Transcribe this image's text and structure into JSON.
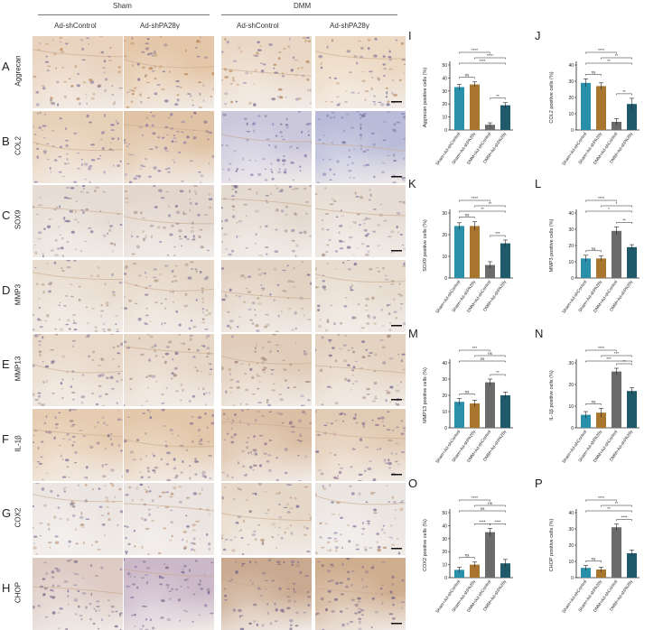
{
  "header": {
    "group_left": "Sham",
    "group_right": "DMM",
    "columns": [
      "Ad-shControl",
      "Ad-shPA28γ",
      "Ad-shControl",
      "Ad-shPA28γ"
    ]
  },
  "rows": [
    {
      "letter": "A",
      "label": "Aggrecan",
      "colors": [
        "#e9d3bf",
        "#e4c7a8",
        "#ead8c6",
        "#ecd9c3"
      ],
      "accent": "#b07a4a",
      "scale_bar": true
    },
    {
      "letter": "B",
      "label": "COL2",
      "colors": [
        "#e7d0b8",
        "#e0c3a5",
        "#ccc8dc",
        "#b9bbd8"
      ],
      "accent": "#7a6aa8",
      "scale_bar": true
    },
    {
      "letter": "C",
      "label": "SOX9",
      "colors": [
        "#e6dcd3",
        "#e3d6cc",
        "#e4d9cf",
        "#e7ddd4"
      ],
      "accent": "#a38a80",
      "scale_bar": true
    },
    {
      "letter": "D",
      "label": "MMP3",
      "colors": [
        "#e9ddd0",
        "#e6d8c9",
        "#e2d2c2",
        "#e7dccf"
      ],
      "accent": "#a88f7a",
      "scale_bar": true
    },
    {
      "letter": "E",
      "label": "MMP13",
      "colors": [
        "#e8d9c9",
        "#e6d6c6",
        "#e0ccb8",
        "#e4d3c1"
      ],
      "accent": "#9e8070",
      "scale_bar": true
    },
    {
      "letter": "F",
      "label": "IL-1β",
      "colors": [
        "#e6cdb2",
        "#e3c8ab",
        "#dcc0a6",
        "#e2cbb4"
      ],
      "accent": "#8a6a8a",
      "scale_bar": true
    },
    {
      "letter": "G",
      "label": "COX2",
      "colors": [
        "#ece6e2",
        "#eae3df",
        "#e6d8c8",
        "#ebe5e1"
      ],
      "accent": "#b58a6a",
      "scale_bar": true
    },
    {
      "letter": "H",
      "label": "CHOP",
      "colors": [
        "#ddcbc4",
        "#cbb8c8",
        "#c9a98f",
        "#cfae90"
      ],
      "accent": "#6d5a7e",
      "scale_bar": true
    }
  ],
  "x_categories": [
    "Sham+Ad-shControl",
    "Sham+Ad-shPA28γ",
    "DMM+Ad-shControl",
    "DMM+Ad-shPA28γ"
  ],
  "bar_colors": [
    "#2a8fa8",
    "#a8762e",
    "#6b6b6b",
    "#1f5a6a"
  ],
  "chart_data": [
    {
      "type": "bar",
      "panel": "I",
      "ylabel": "Aggrecan positive cells (%)",
      "ylim": [
        0,
        50
      ],
      "yticks": [
        0,
        10,
        20,
        30,
        40,
        50
      ],
      "values": [
        33,
        35,
        4,
        19
      ],
      "errors": [
        2,
        2,
        1.5,
        2
      ],
      "brackets": [
        {
          "from": 0,
          "to": 3,
          "label": "****"
        },
        {
          "from": 1,
          "to": 3,
          "label": "****"
        },
        {
          "from": 0,
          "to": 2,
          "label": "****"
        },
        {
          "from": 0,
          "to": 1,
          "label": "ns"
        },
        {
          "from": 2,
          "to": 3,
          "label": "**"
        }
      ]
    },
    {
      "type": "bar",
      "panel": "J",
      "ylabel": "COL2 positive cells (%)",
      "ylim": [
        0,
        40
      ],
      "yticks": [
        0,
        10,
        20,
        30,
        40
      ],
      "values": [
        29,
        27,
        5,
        16
      ],
      "errors": [
        2.5,
        2,
        2,
        3.5
      ],
      "brackets": [
        {
          "from": 0,
          "to": 3,
          "label": "**"
        },
        {
          "from": 1,
          "to": 3,
          "label": "**"
        },
        {
          "from": 0,
          "to": 2,
          "label": "****"
        },
        {
          "from": 0,
          "to": 1,
          "label": "ns"
        },
        {
          "from": 2,
          "to": 3,
          "label": "**"
        }
      ]
    },
    {
      "type": "bar",
      "panel": "K",
      "ylabel": "SOX9 positive cells (%)",
      "ylim": [
        0,
        30
      ],
      "yticks": [
        0,
        10,
        20,
        30
      ],
      "values": [
        24,
        24,
        6,
        16
      ],
      "errors": [
        1.5,
        2,
        1.5,
        1.5
      ],
      "brackets": [
        {
          "from": 0,
          "to": 3,
          "label": "**"
        },
        {
          "from": 1,
          "to": 3,
          "label": "**"
        },
        {
          "from": 0,
          "to": 2,
          "label": "****"
        },
        {
          "from": 0,
          "to": 1,
          "label": "ns"
        },
        {
          "from": 2,
          "to": 3,
          "label": "***"
        }
      ]
    },
    {
      "type": "bar",
      "panel": "L",
      "ylabel": "MMP3 positive cells (%)",
      "ylim": [
        0,
        40
      ],
      "yticks": [
        0,
        10,
        20,
        30,
        40
      ],
      "values": [
        12,
        12,
        29,
        19
      ],
      "errors": [
        2,
        1.5,
        2.5,
        1.5
      ],
      "brackets": [
        {
          "from": 0,
          "to": 3,
          "label": "*"
        },
        {
          "from": 1,
          "to": 3,
          "label": "*"
        },
        {
          "from": 0,
          "to": 2,
          "label": "****"
        },
        {
          "from": 2,
          "to": 3,
          "label": "**"
        },
        {
          "from": 0,
          "to": 1,
          "label": "ns"
        }
      ]
    },
    {
      "type": "bar",
      "panel": "M",
      "ylabel": "MMP13 positive cells (%)",
      "ylim": [
        0,
        40
      ],
      "yticks": [
        0,
        10,
        20,
        30,
        40
      ],
      "values": [
        16,
        15,
        28,
        20
      ],
      "errors": [
        2,
        2,
        2,
        2
      ],
      "brackets": [
        {
          "from": 0,
          "to": 3,
          "label": "ns"
        },
        {
          "from": 1,
          "to": 3,
          "label": "ns"
        },
        {
          "from": 0,
          "to": 2,
          "label": "***"
        },
        {
          "from": 2,
          "to": 3,
          "label": "**"
        },
        {
          "from": 0,
          "to": 1,
          "label": "ns"
        }
      ]
    },
    {
      "type": "bar",
      "panel": "N",
      "ylabel": "IL-1β positive cells (%)",
      "ylim": [
        0,
        30
      ],
      "yticks": [
        0,
        10,
        20,
        30
      ],
      "values": [
        6,
        7,
        26,
        17
      ],
      "errors": [
        1.5,
        2,
        1.5,
        1.5
      ],
      "brackets": [
        {
          "from": 0,
          "to": 3,
          "label": "***"
        },
        {
          "from": 1,
          "to": 3,
          "label": "***"
        },
        {
          "from": 0,
          "to": 2,
          "label": "****"
        },
        {
          "from": 2,
          "to": 3,
          "label": "**"
        },
        {
          "from": 0,
          "to": 1,
          "label": "ns"
        }
      ]
    },
    {
      "type": "bar",
      "panel": "O",
      "ylabel": "COX2 positive cells (%)",
      "ylim": [
        0,
        50
      ],
      "yticks": [
        0,
        10,
        20,
        30,
        40,
        50
      ],
      "values": [
        6,
        10,
        35,
        11
      ],
      "errors": [
        2,
        2,
        3,
        3
      ],
      "brackets": [
        {
          "from": 0,
          "to": 3,
          "label": "ns"
        },
        {
          "from": 1,
          "to": 3,
          "label": "ns"
        },
        {
          "from": 0,
          "to": 2,
          "label": "****"
        },
        {
          "from": 1,
          "to": 2,
          "label": "****"
        },
        {
          "from": 2,
          "to": 3,
          "label": "****"
        },
        {
          "from": 0,
          "to": 1,
          "label": "ns"
        }
      ]
    },
    {
      "type": "bar",
      "panel": "P",
      "ylabel": "CHOP positive cells (%)",
      "ylim": [
        0,
        40
      ],
      "yticks": [
        0,
        10,
        20,
        30,
        40
      ],
      "values": [
        6,
        5,
        31,
        15
      ],
      "errors": [
        1.5,
        1.5,
        2,
        2
      ],
      "brackets": [
        {
          "from": 0,
          "to": 3,
          "label": "**"
        },
        {
          "from": 1,
          "to": 3,
          "label": "**"
        },
        {
          "from": 0,
          "to": 2,
          "label": "****"
        },
        {
          "from": 2,
          "to": 3,
          "label": "****"
        },
        {
          "from": 0,
          "to": 1,
          "label": "ns"
        }
      ]
    }
  ]
}
